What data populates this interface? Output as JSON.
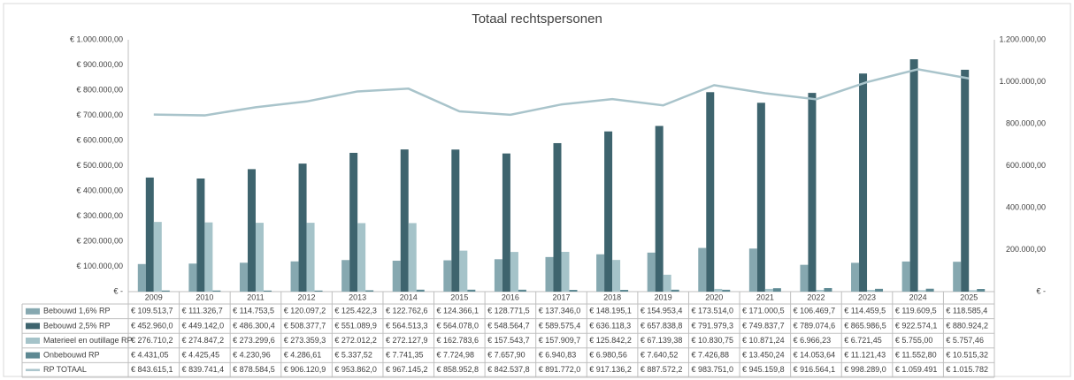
{
  "chart_data": {
    "type": "bar",
    "title": "Totaal rechtspersonen",
    "categories": [
      "2009",
      "2010",
      "2011",
      "2012",
      "2013",
      "2014",
      "2015",
      "2016",
      "2017",
      "2018",
      "2019",
      "2020",
      "2021",
      "2022",
      "2023",
      "2024",
      "2025"
    ],
    "ylim": [
      0,
      1000000
    ],
    "yticks": [
      {
        "value": 0,
        "label": "€ -"
      },
      {
        "value": 100000,
        "label": "€ 100.000,00"
      },
      {
        "value": 200000,
        "label": "€ 200.000,00"
      },
      {
        "value": 300000,
        "label": "€ 300.000,00"
      },
      {
        "value": 400000,
        "label": "€ 400.000,00"
      },
      {
        "value": 500000,
        "label": "€ 500.000,00"
      },
      {
        "value": 600000,
        "label": "€ 600.000,00"
      },
      {
        "value": 700000,
        "label": "€ 700.000,00"
      },
      {
        "value": 800000,
        "label": "€ 800.000,00"
      },
      {
        "value": 900000,
        "label": "€ 900.000,00"
      },
      {
        "value": 1000000,
        "label": "€ 1.000.000,00"
      }
    ],
    "y2lim": [
      0,
      1200000
    ],
    "y2ticks": [
      {
        "value": 0,
        "label": "€ -"
      },
      {
        "value": 200000,
        "label": "200.000,00"
      },
      {
        "value": 400000,
        "label": "400.000,00"
      },
      {
        "value": 600000,
        "label": "600.000,00"
      },
      {
        "value": 800000,
        "label": "800.000,00"
      },
      {
        "value": 1000000,
        "label": "1.000.000,00"
      },
      {
        "value": 1200000,
        "label": "1.200.000,00"
      }
    ],
    "grid": false,
    "series": [
      {
        "name": "Bebouwd 1,6% RP",
        "color": "#86a8b0",
        "type": "bar",
        "values": [
          109513.7,
          111326.7,
          114753.5,
          120097.2,
          125422.3,
          122762.6,
          124366.1,
          128771.5,
          137346.0,
          148195.1,
          154953.4,
          173514.0,
          171000.5,
          106469.7,
          114459.5,
          119609.5,
          118585.4
        ],
        "value_labels": [
          "€ 109.513,7",
          "€ 111.326,7",
          "€ 114.753,5",
          "€ 120.097,2",
          "€ 125.422,3",
          "€ 122.762,6",
          "€ 124.366,1",
          "€ 128.771,5",
          "€ 137.346,0",
          "€ 148.195,1",
          "€ 154.953,4",
          "€ 173.514,0",
          "€ 171.000,5",
          "€ 106.469,7",
          "€ 114.459,5",
          "€ 119.609,5",
          "€ 118.585,4"
        ]
      },
      {
        "name": "Bebouwd 2,5% RP",
        "color": "#3e646e",
        "type": "bar",
        "values": [
          452960.0,
          449142.0,
          486300.4,
          508377.7,
          551089.9,
          564513.3,
          564078.0,
          548564.7,
          589575.4,
          636118.3,
          657838.8,
          791979.3,
          749837.7,
          789074.6,
          865986.5,
          922574.1,
          880924.2
        ],
        "value_labels": [
          "€ 452.960,0",
          "€ 449.142,0",
          "€ 486.300,4",
          "€ 508.377,7",
          "€ 551.089,9",
          "€ 564.513,3",
          "€ 564.078,0",
          "€ 548.564,7",
          "€ 589.575,4",
          "€ 636.118,3",
          "€ 657.838,8",
          "€ 791.979,3",
          "€ 749.837,7",
          "€ 789.074,6",
          "€ 865.986,5",
          "€ 922.574,1",
          "€ 880.924,2"
        ]
      },
      {
        "name": "Materieel en outillage RP",
        "color": "#a5c3c9",
        "type": "bar",
        "values": [
          276710.2,
          274847.2,
          273299.6,
          273359.3,
          272012.2,
          272127.9,
          162783.6,
          157543.7,
          157909.7,
          125842.2,
          67139.38,
          10830.75,
          10871.24,
          6966.23,
          6721.45,
          5755.0,
          5757.46
        ],
        "value_labels": [
          "€ 276.710,2",
          "€ 274.847,2",
          "€ 273.299,6",
          "€ 273.359,3",
          "€ 272.012,2",
          "€ 272.127,9",
          "€ 162.783,6",
          "€ 157.543,7",
          "€ 157.909,7",
          "€ 125.842,2",
          "€ 67.139,38",
          "€ 10.830,75",
          "€ 10.871,24",
          "€ 6.966,23",
          "€ 6.721,45",
          "€ 5.755,00",
          "€ 5.757,46"
        ]
      },
      {
        "name": "Onbebouwd RP",
        "color": "#5e8993",
        "type": "bar",
        "values": [
          4431.05,
          4425.45,
          4230.96,
          4286.61,
          5337.52,
          7741.35,
          7724.98,
          7657.9,
          6940.83,
          6980.56,
          7640.52,
          7426.88,
          13450.24,
          14053.64,
          11121.43,
          11552.8,
          10515.32
        ],
        "value_labels": [
          "€ 4.431,05",
          "€ 4.425,45",
          "€ 4.230,96",
          "€ 4.286,61",
          "€ 5.337,52",
          "€ 7.741,35",
          "€ 7.724,98",
          "€ 7.657,90",
          "€ 6.940,83",
          "€ 6.980,56",
          "€ 7.640,52",
          "€ 7.426,88",
          "€ 13.450,24",
          "€ 14.053,64",
          "€ 11.121,43",
          "€ 11.552,80",
          "€ 10.515,32"
        ]
      },
      {
        "name": "RP TOTAAL",
        "color": "#a9c4cb",
        "type": "line",
        "axis": "y2",
        "values": [
          843615.1,
          839741.4,
          878584.5,
          906120.9,
          953862.0,
          967145.2,
          858952.8,
          842537.8,
          891772.0,
          917136.2,
          887572.2,
          983751.0,
          945159.8,
          916564.1,
          998289.0,
          1059491,
          1015782
        ],
        "value_labels": [
          "€ 843.615,1",
          "€ 839.741,4",
          "€ 878.584,5",
          "€ 906.120,9",
          "€ 953.862,0",
          "€ 967.145,2",
          "€ 858.952,8",
          "€ 842.537,8",
          "€ 891.772,0",
          "€ 917.136,2",
          "€ 887.572,2",
          "€ 983.751,0",
          "€ 945.159,8",
          "€ 916.564,1",
          "€ 998.289,0",
          "€ 1.059.491",
          "€ 1.015.782"
        ]
      }
    ]
  }
}
